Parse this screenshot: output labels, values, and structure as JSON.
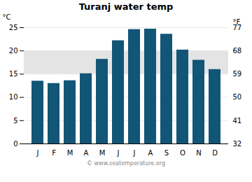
{
  "chart_data": {
    "type": "bar",
    "title": "Turanj water temp",
    "categories": [
      "J",
      "F",
      "M",
      "A",
      "M",
      "J",
      "J",
      "A",
      "S",
      "O",
      "N",
      "D"
    ],
    "values": [
      13.5,
      13.0,
      13.6,
      15.1,
      18.2,
      22.2,
      24.6,
      24.7,
      23.6,
      20.2,
      18.0,
      16.0
    ],
    "color": "#115577",
    "ylabel": "°C",
    "ylim": [
      0,
      25
    ],
    "yticks": [
      0,
      5,
      10,
      15,
      20,
      25
    ],
    "y2label": "°F",
    "y2lim": [
      32,
      77
    ],
    "y2ticks": [
      32,
      41,
      50,
      59,
      68,
      77
    ],
    "shaded_band": [
      15,
      20
    ],
    "grid": true,
    "caption": "© www.seatemperature.org"
  }
}
